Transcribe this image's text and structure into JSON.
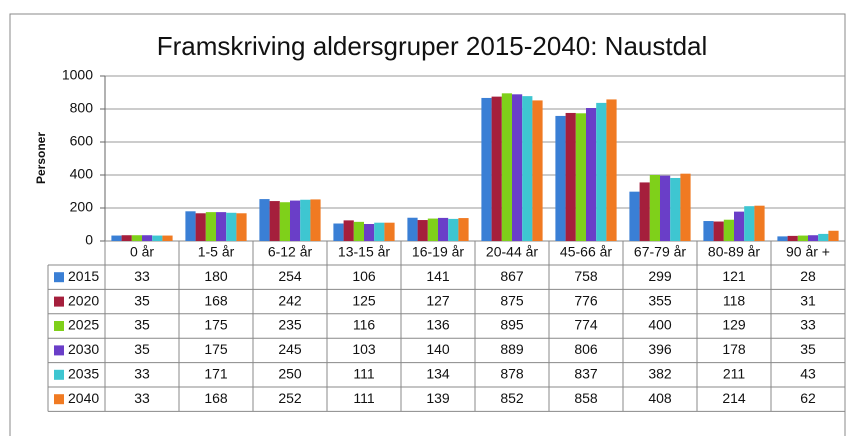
{
  "chart_data": {
    "type": "bar",
    "title": "Framskriving aldersgruper 2015-2040: Naustdal",
    "y_label": "Personer",
    "categories": [
      "0 år",
      "1-5 år",
      "6-12 år",
      "13-15 år",
      "16-19 år",
      "20-44 år",
      "45-66 år",
      "67-79 år",
      "80-89 år",
      "90 år +"
    ],
    "series": [
      {
        "name": "2015",
        "color": "#3a7fd5",
        "values": [
          33,
          180,
          254,
          106,
          141,
          867,
          758,
          299,
          121,
          28
        ]
      },
      {
        "name": "2020",
        "color": "#a51f3c",
        "values": [
          35,
          168,
          242,
          125,
          127,
          875,
          776,
          355,
          118,
          31
        ]
      },
      {
        "name": "2025",
        "color": "#7fd01a",
        "values": [
          35,
          175,
          235,
          116,
          136,
          895,
          774,
          400,
          129,
          33
        ]
      },
      {
        "name": "2030",
        "color": "#6a3ec8",
        "values": [
          35,
          175,
          245,
          103,
          140,
          889,
          806,
          396,
          178,
          35
        ]
      },
      {
        "name": "2035",
        "color": "#3ec6d1",
        "values": [
          33,
          171,
          250,
          111,
          134,
          878,
          837,
          382,
          211,
          43
        ]
      },
      {
        "name": "2040",
        "color": "#f07a22",
        "values": [
          33,
          168,
          252,
          111,
          139,
          852,
          858,
          408,
          214,
          62
        ]
      }
    ],
    "ylim": [
      0,
      1000
    ],
    "yticks": [
      0,
      200,
      400,
      600,
      800,
      1000
    ],
    "grid": true
  }
}
